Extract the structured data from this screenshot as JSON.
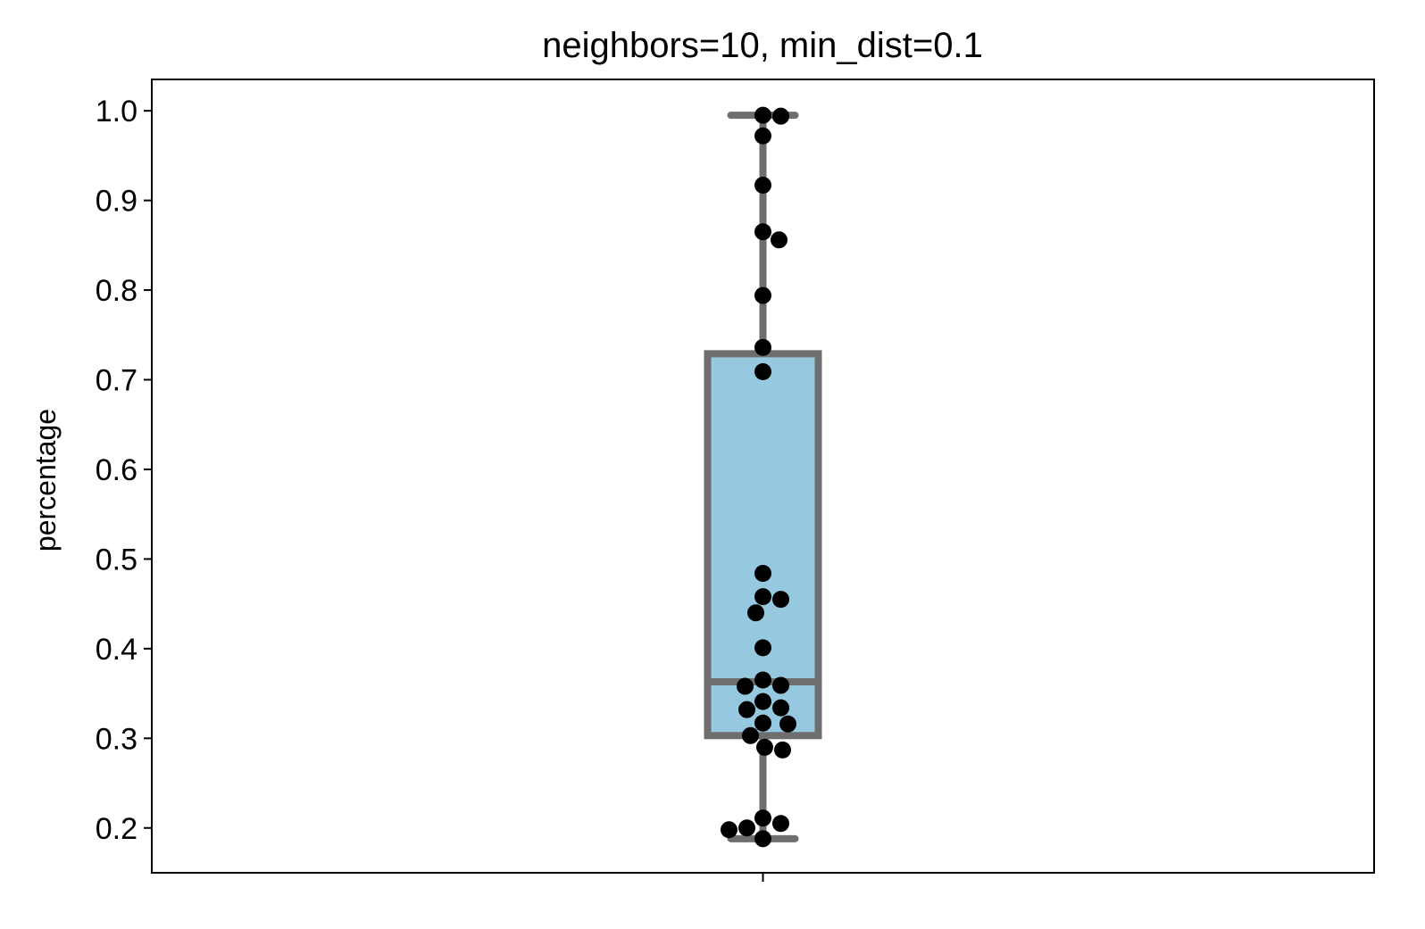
{
  "chart_data": {
    "type": "box",
    "title": "neighbors=10, min_dist=0.1",
    "xlabel": "",
    "ylabel": "percentage",
    "ylim": [
      0.15,
      1.035
    ],
    "yticks": [
      0.2,
      0.3,
      0.4,
      0.5,
      0.6,
      0.7,
      0.8,
      0.9,
      1.0
    ],
    "ytick_labels": [
      "0.2",
      "0.3",
      "0.4",
      "0.5",
      "0.6",
      "0.7",
      "0.8",
      "0.9",
      "1.0"
    ],
    "xticks": [
      ""
    ],
    "grid": false,
    "box": {
      "whisker_low": 0.188,
      "q1": 0.303,
      "median": 0.363,
      "q3": 0.729,
      "whisker_high": 0.995
    },
    "points": [
      0.995,
      0.994,
      0.972,
      0.917,
      0.865,
      0.856,
      0.794,
      0.736,
      0.709,
      0.484,
      0.458,
      0.455,
      0.44,
      0.401,
      0.365,
      0.359,
      0.358,
      0.341,
      0.334,
      0.332,
      0.317,
      0.316,
      0.303,
      0.29,
      0.287,
      0.211,
      0.205,
      0.2,
      0.198,
      0.188
    ],
    "colors": {
      "box_fill": "#96c9df",
      "box_edge": "#6e6e6e",
      "points": "#000000",
      "frame": "#000000"
    }
  }
}
